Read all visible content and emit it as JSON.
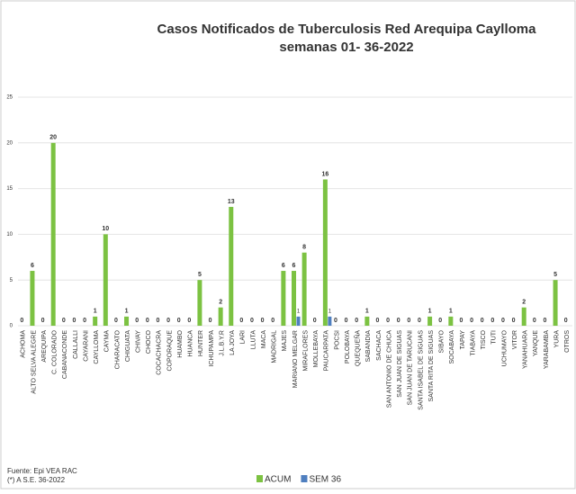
{
  "chart_data": {
    "type": "bar",
    "title": "Casos Notificados de Tuberculosis Red Arequipa Caylloma",
    "subtitle": "semanas 01- 36-2022",
    "source": "Fuente: Epi VEA RAC",
    "note": "(*) A S.E. 36-2022",
    "categories": [
      "ACHOMA",
      "ALTO SELVA ALEGRE",
      "AREQUIPA",
      "C. COLORADO",
      "CABANACONDE",
      "CALLALLI",
      "CAYARANI",
      "CAYLLOMA",
      "CAYMA",
      "CHARACATO",
      "CHIGUATA",
      "CHIVAY",
      "CHOCO",
      "COCACHACRA",
      "COPORAQUE",
      "HUAMBO",
      "HUANCA",
      "HUNTER",
      "ICHUPAMPA",
      "J.L.B.Y.R",
      "LA JOYA",
      "LARI",
      "LLUTA",
      "MACA",
      "MADRIGAL",
      "MAJES",
      "MARIANO MELGAR",
      "MIRAFLORES",
      "MOLLEBAYA",
      "PAUCARPATA",
      "POCSI",
      "POLOBAYA",
      "QUEQUEÑA",
      "SABANDIA",
      "SACHACA",
      "SAN ANTONIO DE CHUCA",
      "SAN JUAN DE SIGUAS",
      "SAN JUAN DE TARUCANI",
      "SANTA ISABEL DE SIGUAS",
      "SANTA RITA DE SIGUAS",
      "SIBAYO",
      "SOCABAYA",
      "TAPAY",
      "TIABAYA",
      "TISCO",
      "TUTI",
      "UCHUMAYO",
      "VITOR",
      "YANAHUARA",
      "YANQUE",
      "YARABAMBA",
      "YURA",
      "OTROS"
    ],
    "series": [
      {
        "name": "ACUM",
        "color": "#7cc242",
        "values": [
          0,
          6,
          0,
          20,
          0,
          0,
          0,
          1,
          10,
          0,
          1,
          0,
          0,
          0,
          0,
          0,
          0,
          5,
          0,
          2,
          13,
          0,
          0,
          0,
          0,
          6,
          6,
          8,
          0,
          16,
          0,
          0,
          0,
          1,
          0,
          0,
          0,
          0,
          0,
          1,
          0,
          1,
          0,
          0,
          0,
          0,
          0,
          0,
          2,
          0,
          0,
          5,
          0
        ]
      },
      {
        "name": "SEM 36",
        "color": "#4f7fbf",
        "values": [
          0,
          0,
          0,
          0,
          0,
          0,
          0,
          0,
          0,
          0,
          0,
          0,
          0,
          0,
          0,
          0,
          0,
          0,
          0,
          0,
          0,
          0,
          0,
          0,
          0,
          0,
          1,
          0,
          0,
          1,
          0,
          0,
          0,
          0,
          0,
          0,
          0,
          0,
          0,
          0,
          0,
          0,
          0,
          0,
          0,
          0,
          0,
          0,
          0,
          0,
          0,
          0,
          0
        ]
      }
    ],
    "ylim": [
      0,
      25
    ],
    "yticks": [
      0,
      5,
      10,
      15,
      20,
      25
    ],
    "grid": true
  }
}
